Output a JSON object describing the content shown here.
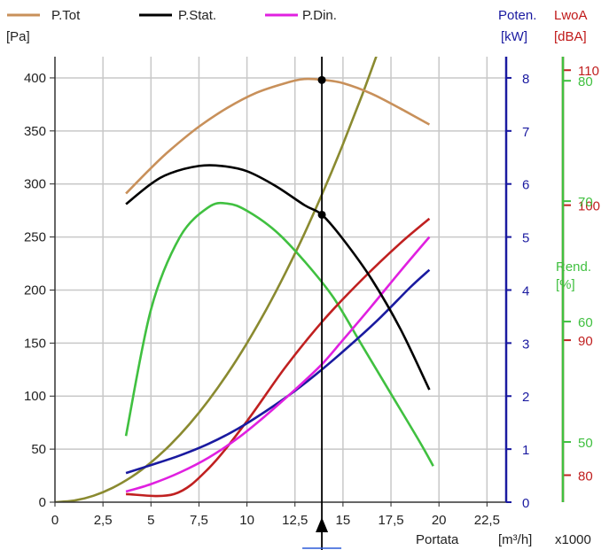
{
  "legend": [
    {
      "label": "P.Tot",
      "color": "#c8905a"
    },
    {
      "label": "P.Stat.",
      "color": "#000000"
    },
    {
      "label": "P.Din.",
      "color": "#e020e0"
    }
  ],
  "left_axis_unit": "[Pa]",
  "power_axis": {
    "title": "Poten.",
    "unit": "[kW]",
    "color": "#1a1aa0"
  },
  "noise_axis": {
    "title": "LwoA",
    "unit": "[dBA]",
    "color": "#c01818"
  },
  "eff_axis": {
    "title": "Rend.",
    "unit": "[%]",
    "color": "#40c040"
  },
  "x_axis": {
    "label": "Portata",
    "unit": "[m³/h]",
    "multiplier": "x1000"
  },
  "colors": {
    "power": "#1a1aa0",
    "noise": "#c02020",
    "eff": "#40c040",
    "olive": "#8a8a30",
    "grid": "#c8c8c8"
  },
  "chart_data": {
    "type": "line",
    "xlim": [
      0,
      23.5
    ],
    "x_ticks": [
      0,
      2.5,
      5,
      7.5,
      10,
      12.5,
      15,
      17.5,
      20,
      22.5
    ],
    "x_tick_labels": [
      "0",
      "2,5",
      "5",
      "7,5",
      "10",
      "12,5",
      "15",
      "17,5",
      "20",
      "22,5"
    ],
    "operating_point_x": 13.9,
    "axes": {
      "pressure": {
        "range": [
          0,
          420
        ],
        "ticks": [
          0,
          50,
          100,
          150,
          200,
          250,
          300,
          350,
          400
        ]
      },
      "power": {
        "range": [
          0,
          8.4
        ],
        "ticks": [
          0,
          1,
          2,
          3,
          4,
          5,
          6,
          7,
          8
        ]
      },
      "noise": {
        "range": [
          78,
          111
        ],
        "ticks": [
          80,
          90,
          100,
          110
        ]
      },
      "eff": {
        "range": [
          45,
          82
        ],
        "ticks": [
          50,
          60,
          70,
          80
        ]
      }
    },
    "series": [
      {
        "name": "P.Tot",
        "axis": "pressure",
        "color": "#c8905a",
        "x": [
          3.7,
          5,
          6,
          7.5,
          9,
          10.5,
          12,
          13,
          14,
          15,
          16.5,
          18,
          19.5
        ],
        "y": [
          291,
          315,
          332,
          354,
          372,
          386,
          395,
          399,
          398,
          395,
          385,
          371,
          356
        ]
      },
      {
        "name": "P.Stat.",
        "axis": "pressure",
        "color": "#000000",
        "x": [
          3.7,
          5,
          6,
          7.5,
          8.7,
          10,
          11.5,
          13,
          13.9,
          15,
          16.5,
          18,
          19.5
        ],
        "y": [
          281,
          300,
          310,
          317,
          317,
          312,
          298,
          280,
          271,
          248,
          210,
          163,
          106
        ]
      },
      {
        "name": "P.Din.",
        "axis": "pressure",
        "color": "#e020e0",
        "x": [
          3.7,
          5,
          6.5,
          8,
          9.5,
          11,
          12.5,
          13.9,
          15,
          16.5,
          18,
          19.5
        ],
        "y": [
          10,
          17,
          28,
          42,
          60,
          82,
          106,
          130,
          153,
          185,
          218,
          250
        ]
      },
      {
        "axis": "power",
        "color": "#1a1aa0",
        "x": [
          3.7,
          5,
          6.5,
          8,
          9.5,
          11,
          12.5,
          14,
          15.5,
          17,
          18.5,
          19.5
        ],
        "y": [
          0.55,
          0.7,
          0.88,
          1.1,
          1.38,
          1.72,
          2.1,
          2.53,
          3.0,
          3.5,
          4.05,
          4.38
        ]
      },
      {
        "axis": "noise",
        "color": "#c02020",
        "x": [
          3.7,
          6.2,
          8,
          10,
          12,
          14,
          16,
          18,
          19.5
        ],
        "y": [
          78.6,
          78.6,
          80.5,
          84,
          88,
          91.5,
          94.5,
          97.2,
          99
        ]
      },
      {
        "axis": "eff",
        "color": "#40c040",
        "x": [
          3.7,
          5,
          6.5,
          8,
          9,
          10,
          11.5,
          13,
          14.5,
          16,
          17.5,
          19,
          19.7
        ],
        "y": [
          50.5,
          61,
          67,
          69.5,
          69.8,
          69.2,
          67.5,
          65,
          62,
          58,
          54,
          50,
          48
        ]
      },
      {
        "axis": "pressure",
        "color": "#8a8a30",
        "x": [
          0,
          1,
          2,
          3,
          4,
          5,
          6,
          7,
          8,
          9,
          10,
          11,
          12,
          13,
          14,
          15,
          16,
          17,
          17.5
        ],
        "y": [
          0,
          1.5,
          6,
          13.5,
          24,
          37.5,
          54,
          73.5,
          96,
          121.5,
          150,
          181.5,
          216,
          253.5,
          294,
          337.5,
          384,
          433.5,
          459
        ]
      }
    ],
    "markers": [
      {
        "series": "P.Tot",
        "x": 13.9,
        "y": 398
      },
      {
        "series": "P.Stat.",
        "x": 13.9,
        "y": 271
      }
    ]
  }
}
